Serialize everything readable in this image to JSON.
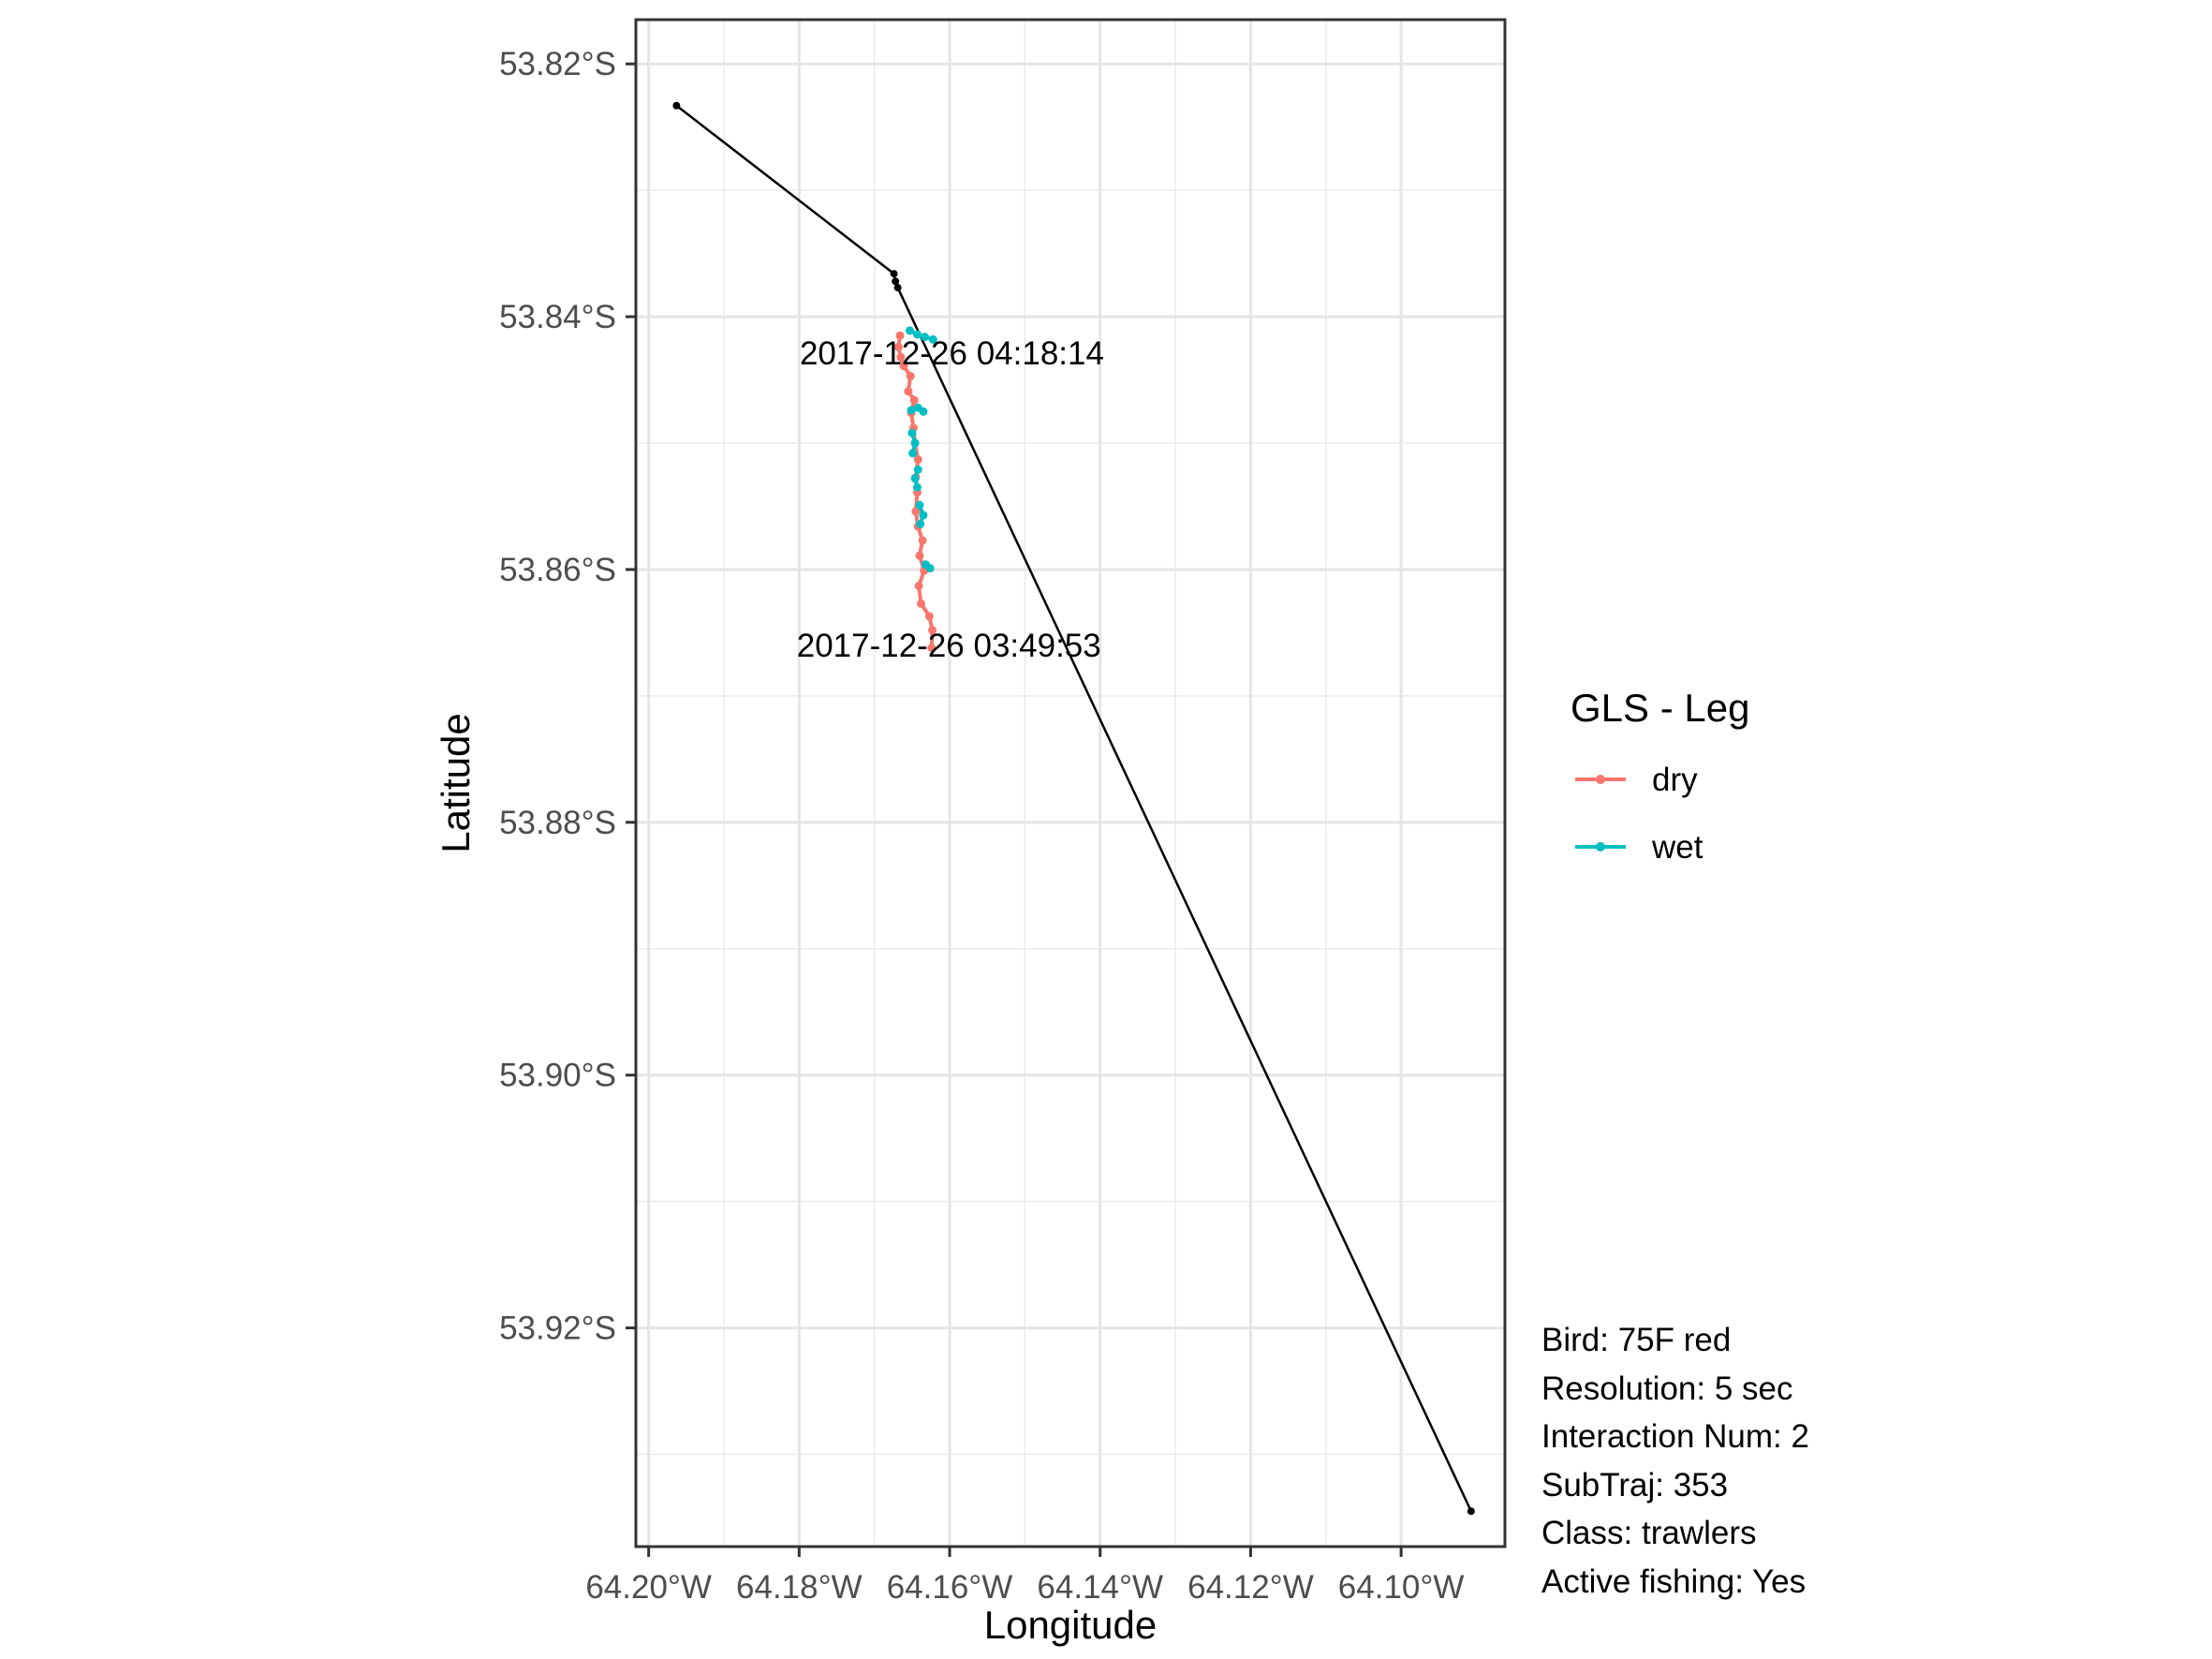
{
  "chart_data": {
    "type": "line",
    "xlabel": "Longitude",
    "ylabel": "Latitude",
    "xlim": [
      -64.2017,
      -64.0862
    ],
    "ylim": [
      -53.9373,
      -53.8165
    ],
    "x_ticks": [
      -64.2,
      -64.18,
      -64.16,
      -64.14,
      -64.12,
      -64.1
    ],
    "x_tick_labels": [
      "64.20°W",
      "64.18°W",
      "64.16°W",
      "64.14°W",
      "64.12°W",
      "64.10°W"
    ],
    "y_ticks": [
      -53.82,
      -53.84,
      -53.86,
      -53.88,
      -53.9,
      -53.92
    ],
    "y_tick_labels": [
      "53.82°S",
      "53.84°S",
      "53.86°S",
      "53.88°S",
      "53.90°S",
      "53.92°S"
    ],
    "grid": true,
    "legend": {
      "title": "GLS - Leg",
      "position": "right",
      "entries": [
        {
          "name": "dry",
          "color": "#F8766D"
        },
        {
          "name": "wet",
          "color": "#00BFC4"
        }
      ]
    },
    "vessel_track": {
      "color": "#000000",
      "points": [
        {
          "lon": -64.1963,
          "lat": -53.8233
        },
        {
          "lon": -64.1674,
          "lat": -53.8366
        },
        {
          "lon": -64.1672,
          "lat": -53.8372
        },
        {
          "lon": -64.1669,
          "lat": -53.8377
        },
        {
          "lon": -64.0907,
          "lat": -53.9345
        }
      ]
    },
    "series": [
      {
        "name": "dry",
        "color": "#F8766D",
        "points": [
          {
            "lon": -64.1624,
            "lat": -53.8662
          },
          {
            "lon": -64.1623,
            "lat": -53.8648
          },
          {
            "lon": -64.1627,
            "lat": -53.8637
          },
          {
            "lon": -64.1638,
            "lat": -53.8627
          },
          {
            "lon": -64.1641,
            "lat": -53.8613
          },
          {
            "lon": -64.1634,
            "lat": -53.8601
          },
          {
            "lon": -64.164,
            "lat": -53.8589
          },
          {
            "lon": -64.1636,
            "lat": -53.8577
          },
          {
            "lon": -64.1642,
            "lat": -53.8566
          },
          {
            "lon": -64.1645,
            "lat": -53.8554
          },
          {
            "lon": -64.1643,
            "lat": -53.8539
          },
          {
            "lon": -64.1645,
            "lat": -53.8527
          },
          {
            "lon": -64.1642,
            "lat": -53.8513
          },
          {
            "lon": -64.1646,
            "lat": -53.85
          },
          {
            "lon": -64.1648,
            "lat": -53.8488
          },
          {
            "lon": -64.1651,
            "lat": -53.8476
          },
          {
            "lon": -64.1647,
            "lat": -53.8466
          },
          {
            "lon": -64.1655,
            "lat": -53.8459
          },
          {
            "lon": -64.1652,
            "lat": -53.8447
          },
          {
            "lon": -64.1661,
            "lat": -53.8439
          },
          {
            "lon": -64.1665,
            "lat": -53.8432
          },
          {
            "lon": -64.1668,
            "lat": -53.8424
          },
          {
            "lon": -64.1666,
            "lat": -53.8415
          }
        ]
      },
      {
        "name": "wet",
        "color": "#00BFC4",
        "points": [
          {
            "lon": -64.1653,
            "lat": -53.8411
          },
          {
            "lon": -64.1643,
            "lat": -53.8414
          },
          {
            "lon": -64.1633,
            "lat": -53.8416
          },
          {
            "lon": -64.1622,
            "lat": -53.8418
          }
        ]
      },
      {
        "name": "wet",
        "color": "#00BFC4",
        "points": [
          {
            "lon": -64.1651,
            "lat": -53.8474
          },
          {
            "lon": -64.1642,
            "lat": -53.8472
          },
          {
            "lon": -64.1635,
            "lat": -53.8475
          }
        ]
      },
      {
        "name": "wet",
        "color": "#00BFC4",
        "points": [
          {
            "lon": -64.165,
            "lat": -53.8492
          },
          {
            "lon": -64.1646,
            "lat": -53.85
          },
          {
            "lon": -64.1649,
            "lat": -53.8508
          }
        ]
      },
      {
        "name": "wet",
        "color": "#00BFC4",
        "points": [
          {
            "lon": -64.1642,
            "lat": -53.8521
          },
          {
            "lon": -64.1646,
            "lat": -53.8528
          },
          {
            "lon": -64.1643,
            "lat": -53.8535
          }
        ]
      },
      {
        "name": "wet",
        "color": "#00BFC4",
        "points": [
          {
            "lon": -64.164,
            "lat": -53.8549
          },
          {
            "lon": -64.1635,
            "lat": -53.8557
          },
          {
            "lon": -64.1639,
            "lat": -53.8564
          }
        ]
      },
      {
        "name": "wet",
        "color": "#00BFC4",
        "points": [
          {
            "lon": -64.1632,
            "lat": -53.8596
          },
          {
            "lon": -64.1626,
            "lat": -53.8599
          }
        ]
      }
    ],
    "annotations": [
      {
        "text": "2017-12-26 04:18:14",
        "lon": -64.1597,
        "lat": -53.8429
      },
      {
        "text": "2017-12-26 03:49:53",
        "lon": -64.1601,
        "lat": -53.866
      }
    ]
  },
  "info_lines": [
    "Bird: 75F red",
    "Resolution: 5 sec",
    "Interaction Num: 2",
    "SubTraj: 353",
    "Class: trawlers",
    "Active fishing: Yes"
  ]
}
